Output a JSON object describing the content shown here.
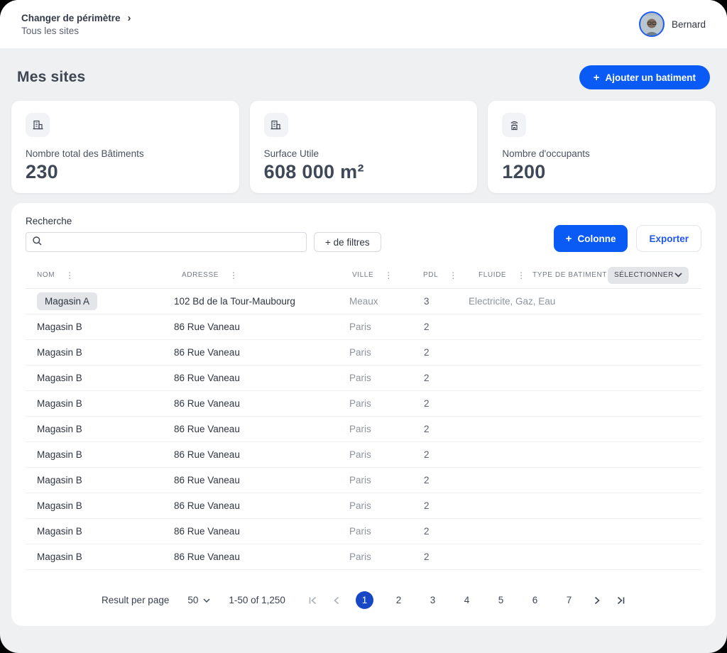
{
  "colors": {
    "accent_blue": "#0a5af5",
    "active_page_blue": "#1747c6",
    "app_bg": "#eef0f2"
  },
  "header": {
    "breadcrumb": {
      "title": "Changer de périmètre",
      "chevron": "›",
      "subtitle": "Tous les sites"
    },
    "user": {
      "name": "Bernard",
      "avatar_icon": "user-photo"
    }
  },
  "page": {
    "title": "Mes sites",
    "add_button": {
      "plus": "+",
      "label": "Ajouter un batiment"
    }
  },
  "stats": [
    {
      "icon": "building-icon",
      "label": "Nombre total des Bâtiments",
      "value": "230"
    },
    {
      "icon": "building-icon",
      "label": "Surface Utile",
      "value": "608 000 m²"
    },
    {
      "icon": "occupants-icon",
      "label": "Nombre d'occupants",
      "value": "1200"
    }
  ],
  "toolbar": {
    "search_label": "Recherche",
    "search_placeholder": "",
    "search_icon": "search-icon",
    "filters_button_label": "+ de filtres",
    "column_button": {
      "plus": "+",
      "label": "Colonne"
    },
    "export_button_label": "Exporter"
  },
  "table": {
    "columns": [
      "NOM",
      "ADRESSE",
      "VILLE",
      "PDL",
      "FLUIDE",
      "TYPE DE BATIMENT"
    ],
    "kebab_icon": "⋮",
    "select_label": "SÉLECTIONNER",
    "rows": [
      {
        "nom": "Magasin A",
        "adresse": "102 Bd de la Tour-Maubourg",
        "ville": "Meaux",
        "pdl": "3",
        "fluide": "Electricite, Gaz, Eau",
        "selected": true
      },
      {
        "nom": "Magasin B",
        "adresse": "86 Rue Vaneau",
        "ville": "Paris",
        "pdl": "2",
        "fluide": "",
        "selected": false
      },
      {
        "nom": "Magasin B",
        "adresse": "86 Rue Vaneau",
        "ville": "Paris",
        "pdl": "2",
        "fluide": "",
        "selected": false
      },
      {
        "nom": "Magasin B",
        "adresse": "86 Rue Vaneau",
        "ville": "Paris",
        "pdl": "2",
        "fluide": "",
        "selected": false
      },
      {
        "nom": "Magasin B",
        "adresse": "86 Rue Vaneau",
        "ville": "Paris",
        "pdl": "2",
        "fluide": "",
        "selected": false
      },
      {
        "nom": "Magasin B",
        "adresse": "86 Rue Vaneau",
        "ville": "Paris",
        "pdl": "2",
        "fluide": "",
        "selected": false
      },
      {
        "nom": "Magasin B",
        "adresse": "86 Rue Vaneau",
        "ville": "Paris",
        "pdl": "2",
        "fluide": "",
        "selected": false
      },
      {
        "nom": "Magasin B",
        "adresse": "86 Rue Vaneau",
        "ville": "Paris",
        "pdl": "2",
        "fluide": "",
        "selected": false
      },
      {
        "nom": "Magasin B",
        "adresse": "86 Rue Vaneau",
        "ville": "Paris",
        "pdl": "2",
        "fluide": "",
        "selected": false
      },
      {
        "nom": "Magasin B",
        "adresse": "86 Rue Vaneau",
        "ville": "Paris",
        "pdl": "2",
        "fluide": "",
        "selected": false
      },
      {
        "nom": "Magasin B",
        "adresse": "86 Rue Vaneau",
        "ville": "Paris",
        "pdl": "2",
        "fluide": "",
        "selected": false
      }
    ]
  },
  "pagination": {
    "results_label": "Result per page",
    "page_size": "50",
    "range": "1-50 of 1,250",
    "pages": [
      "1",
      "2",
      "3",
      "4",
      "5",
      "6",
      "7"
    ],
    "active_page": "1"
  }
}
